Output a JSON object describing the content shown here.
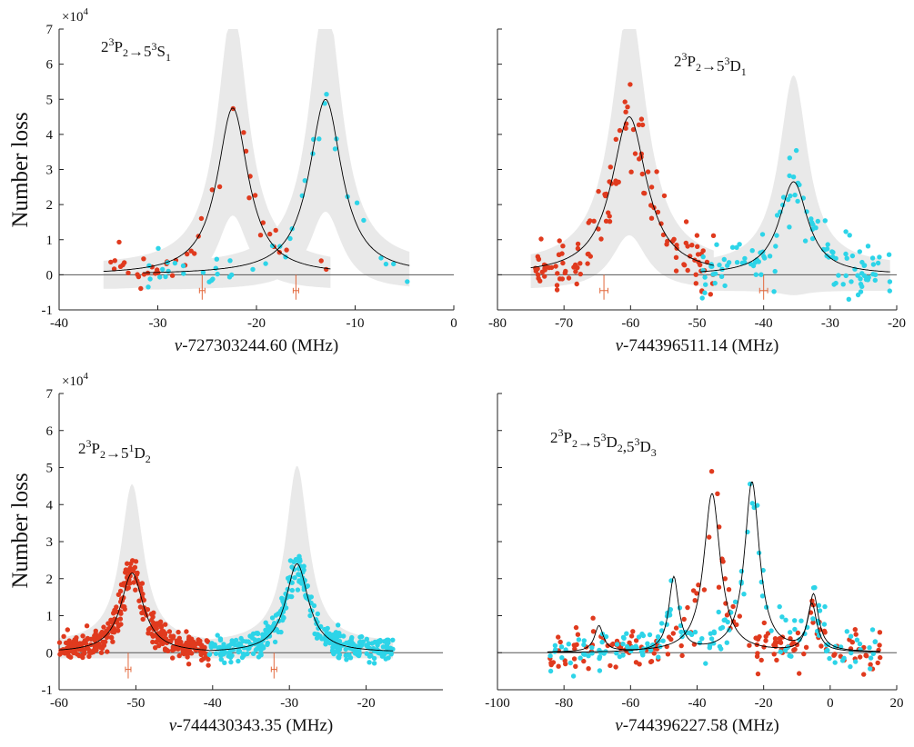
{
  "figure": {
    "ylabel": "Number loss",
    "exponent_multiplier": "×10",
    "exponent_power": "4"
  },
  "colors": {
    "series_a": "#e03a1e",
    "series_b": "#2dd4e8",
    "fit": "#000000",
    "band": "#e9e9e9",
    "marker": "#e2683c",
    "axis": "#222222"
  },
  "chart_data": [
    {
      "type": "scatter",
      "panel": "top-left",
      "label_parts": [
        "2",
        "3",
        "P",
        "2",
        "→5",
        "3",
        "S",
        "1"
      ],
      "xlabel_var": "ν",
      "xlabel_rest": "-727303244.60 (MHz)",
      "xlim": [
        -40,
        0
      ],
      "ylim": [
        -1,
        7
      ],
      "y_scale": 10000,
      "xticks": [
        -40,
        -30,
        -20,
        -10,
        0
      ],
      "yticks": [
        -1,
        0,
        1,
        2,
        3,
        4,
        5,
        6,
        7
      ],
      "show_ytick_labels": true,
      "show_exponent": true,
      "peaks": [
        {
          "series": "series_a",
          "center": -22.4,
          "amplitude": 4.75,
          "hwhm": 1.9,
          "range": [
            -35.5,
            -12.5
          ],
          "band_scale": 1.55,
          "band_floor": -0.4,
          "error_bar_x": -25.5,
          "error_bar_xerr": 0.25
        },
        {
          "series": "series_b",
          "center": -13.0,
          "amplitude": 5.0,
          "hwhm": 2.0,
          "range": [
            -31.5,
            -4.5
          ],
          "band_scale": 1.55,
          "band_floor": -0.65,
          "error_bar_x": -16.0,
          "error_bar_xerr": 0.25
        }
      ],
      "scatter_points": {
        "series_a": 45,
        "series_b": 45,
        "noise": 0.22,
        "seed": 11
      }
    },
    {
      "type": "scatter",
      "panel": "top-right",
      "label_parts": [
        "2",
        "3",
        "P",
        "2",
        "→5",
        "3",
        "D",
        "1"
      ],
      "xlabel_var": "ν",
      "xlabel_rest": "-744396511.14 (MHz)",
      "xlim": [
        -80,
        -20
      ],
      "ylim": [
        -1,
        7
      ],
      "y_scale": 10000,
      "xticks": [
        -80,
        -70,
        -60,
        -50,
        -40,
        -30,
        -20
      ],
      "yticks": [
        -1,
        0,
        1,
        2,
        3,
        4,
        5,
        6,
        7
      ],
      "show_ytick_labels": false,
      "show_exponent": false,
      "peaks": [
        {
          "series": "series_a",
          "center": -60.2,
          "amplitude": 4.5,
          "hwhm": 3.2,
          "range": [
            -75,
            -47.5
          ],
          "band_scale": 1.65,
          "band_floor": -0.75,
          "error_bar_x": -64.0,
          "error_bar_xerr": 0.6
        },
        {
          "series": "series_b",
          "center": -35.5,
          "amplitude": 2.65,
          "hwhm": 2.6,
          "range": [
            -49.5,
            -21
          ],
          "band_scale": 2.05,
          "band_floor": -0.7,
          "error_bar_x": -40.0,
          "error_bar_xerr": 0.6
        }
      ],
      "scatter_points": {
        "series_a": 130,
        "series_b": 120,
        "noise": 0.35,
        "seed": 23
      }
    },
    {
      "type": "scatter",
      "panel": "bottom-left",
      "label_parts": [
        "2",
        "3",
        "P",
        "2",
        "→5",
        "1",
        "D",
        "2"
      ],
      "xlabel_var": "ν",
      "xlabel_rest": "-744430343.35 (MHz)",
      "xlim": [
        -60,
        -10
      ],
      "ylim": [
        -1,
        7
      ],
      "y_scale": 10000,
      "xticks": [
        -60,
        -50,
        -40,
        -30,
        -20
      ],
      "yticks": [
        -1,
        0,
        1,
        2,
        3,
        4,
        5,
        6,
        7
      ],
      "show_ytick_labels": true,
      "show_exponent": true,
      "peaks": [
        {
          "series": "series_a",
          "center": -50.5,
          "amplitude": 2.15,
          "hwhm": 1.8,
          "range": [
            -60,
            -40.5
          ],
          "band_scale": 2.0,
          "band_floor": -0.15,
          "error_bar_x": -51.0,
          "error_bar_xerr": 0.25
        },
        {
          "series": "series_b",
          "center": -29.0,
          "amplitude": 2.4,
          "hwhm": 1.8,
          "range": [
            -40.5,
            -16.5
          ],
          "band_scale": 2.0,
          "band_floor": -0.15,
          "error_bar_x": -32.0,
          "error_bar_xerr": 0.25
        }
      ],
      "scatter_points": {
        "series_a": 360,
        "series_b": 360,
        "noise": 0.17,
        "seed": 37
      }
    },
    {
      "type": "scatter",
      "panel": "bottom-right",
      "label_parts": [
        "2",
        "3",
        "P",
        "2",
        "→5",
        "3",
        "D",
        "2",
        ",5",
        "3",
        "D",
        "3"
      ],
      "xlabel_var": "ν",
      "xlabel_rest": "-744396227.58 (MHz)",
      "xlim": [
        -100,
        20
      ],
      "ylim": [
        -1,
        7
      ],
      "y_scale": 10000,
      "xticks": [
        -100,
        -80,
        -60,
        -40,
        -20,
        0,
        20
      ],
      "yticks": [
        -1,
        0,
        1,
        2,
        3,
        4,
        5,
        6,
        7
      ],
      "show_ytick_labels": false,
      "show_exponent": false,
      "multi_fits": [
        {
          "series": "series_a",
          "range": [
            -85,
            15
          ],
          "peaks": [
            {
              "center": -69.5,
              "amplitude": 0.7,
              "hwhm": 1.6
            },
            {
              "center": -35.5,
              "amplitude": 4.3,
              "hwhm": 3.0
            },
            {
              "center": -5.5,
              "amplitude": 1.3,
              "hwhm": 1.8
            }
          ]
        },
        {
          "series": "series_b",
          "range": [
            -85,
            15
          ],
          "peaks": [
            {
              "center": -47.0,
              "amplitude": 2.0,
              "hwhm": 1.8
            },
            {
              "center": -23.5,
              "amplitude": 4.6,
              "hwhm": 2.7
            },
            {
              "center": -5.0,
              "amplitude": 1.5,
              "hwhm": 1.8
            }
          ]
        }
      ],
      "scatter_points": {
        "series_a": 170,
        "series_b": 170,
        "noise": 0.28,
        "seed": 53
      }
    }
  ]
}
